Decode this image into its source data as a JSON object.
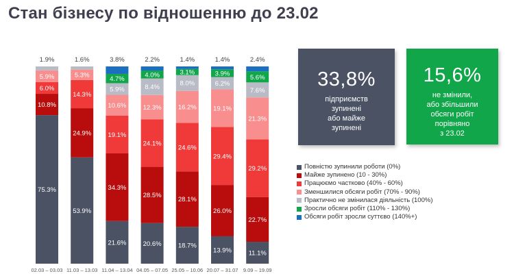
{
  "title": "Стан бізнесу по відношенню до 23.02",
  "cards": [
    {
      "value_main": "33,",
      "value_decimal": "8%",
      "note": [
        "підприємств",
        "зупинені",
        "або майже",
        "зупинені"
      ],
      "color": "#4a5263"
    },
    {
      "value_main": "15,",
      "value_decimal": "6%",
      "note": [
        "не змінили,",
        "або збільшили",
        "обсяги робіт",
        "порівняно",
        "з 23.02"
      ],
      "color": "#11a64a"
    }
  ],
  "chart_data": {
    "type": "bar",
    "stacked": true,
    "normalized_to": 100,
    "categories": [
      "02.03 – 03.03",
      "11.03 – 13.03",
      "11.04 – 13.04",
      "04.05 – 07.05",
      "25.05 – 10.06",
      "20.07 – 31.07",
      "9.09 – 19.09"
    ],
    "series": [
      {
        "name": "Повністю зупинили роботи (0%)",
        "color": "#4a5263",
        "values": [
          75.3,
          53.9,
          21.6,
          20.6,
          18.7,
          13.9,
          11.1
        ]
      },
      {
        "name": "Майже зупинено (10 - 30%)",
        "color": "#b90d0d",
        "values": [
          10.8,
          24.9,
          34.3,
          28.5,
          28.1,
          26.0,
          22.7
        ]
      },
      {
        "name": "Працюємо частково (40% - 60%)",
        "color": "#f03a3a",
        "values": [
          6.0,
          14.3,
          19.1,
          24.1,
          24.6,
          29.4,
          29.2
        ]
      },
      {
        "name": "Зменшилися обсяги робіт (70% - 90%)",
        "color": "#f88e8e",
        "values": [
          5.9,
          5.3,
          10.6,
          12.3,
          16.2,
          19.1,
          21.3
        ]
      },
      {
        "name": "Практично не змінилася діяльність (100%)",
        "color": "#b9bcc6",
        "values": [
          null,
          null,
          5.9,
          8.4,
          8.0,
          6.2,
          7.6
        ]
      },
      {
        "name": "Зросли обсяги робіт (110% - 130%)",
        "color": "#11a64a",
        "values": [
          null,
          null,
          4.7,
          4.0,
          3.1,
          3.9,
          5.6
        ]
      },
      {
        "name": "Обсяги робіт зросли суттєво (140%+)",
        "color": "#1a6fc0",
        "values": [
          null,
          null,
          null,
          null,
          null,
          null,
          null
        ]
      }
    ],
    "top_labels": [
      "1.9%",
      "1.6%",
      "3.8%",
      "2.2%",
      "1.4%",
      "1.4%",
      "2.4%"
    ],
    "data_labels": [
      [
        "75.3%",
        "10.8%",
        "6.0%",
        "5.9%",
        null,
        null,
        null
      ],
      [
        "53.9%",
        "24.9%",
        "14.3%",
        "5.3%",
        null,
        null,
        null
      ],
      [
        "21.6%",
        "34.3%",
        "19.1%",
        "10.6%",
        "5.9%",
        "4.7%",
        null
      ],
      [
        "20.6%",
        "28.5%",
        "24.1%",
        "12.3%",
        "8.4%",
        "4.0%",
        null
      ],
      [
        "18.7%",
        "28.1%",
        "24.6%",
        "16.2%",
        "8.0%",
        "3.1%",
        null
      ],
      [
        "13.9%",
        "26.0%",
        "29.4%",
        "19.1%",
        "6.2%",
        "3.9%",
        null
      ],
      [
        "11.1%",
        "22.7%",
        "29.2%",
        "21.3%",
        "7.6%",
        "5.6%",
        null
      ]
    ],
    "legend_position": "right"
  }
}
